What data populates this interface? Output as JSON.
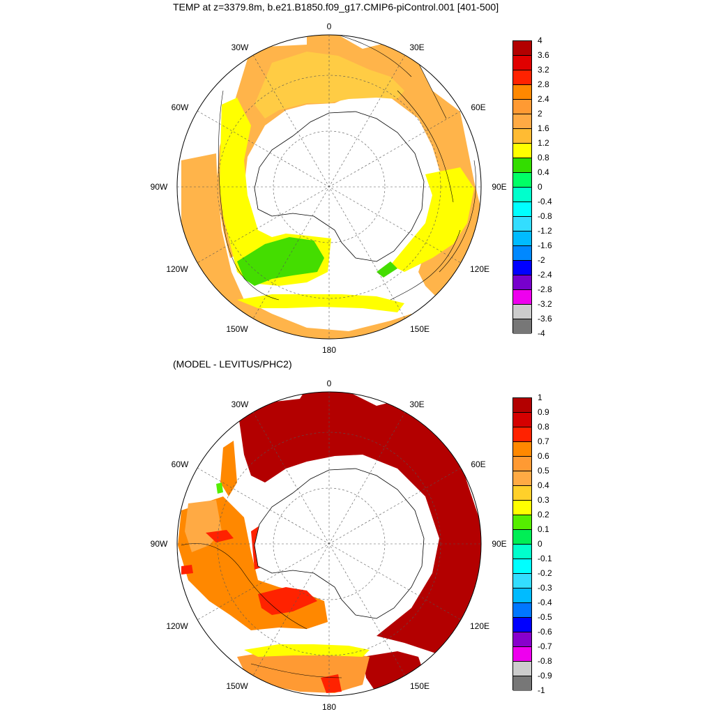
{
  "panels": [
    {
      "title": "TEMP at z=3379.8m, b.e21.B1850.f09_g17.CMIP6-piControl.001 [401-500]",
      "lon_labels": {
        "n": "0",
        "ne30": "30E",
        "ne60": "60E",
        "e": "90E",
        "se120": "120E",
        "se150": "150E",
        "s": "180",
        "sw150": "150W",
        "sw120": "120W",
        "w": "90W",
        "nw60": "60W",
        "nw30": "30W"
      },
      "colorbar": {
        "labels": [
          "4",
          "3.6",
          "3.2",
          "2.8",
          "2.4",
          "2",
          "1.6",
          "1.2",
          "0.8",
          "0.4",
          "0",
          "-0.4",
          "-0.8",
          "-1.2",
          "-1.6",
          "-2",
          "-2.4",
          "-2.8",
          "-3.2",
          "-3.6",
          "-4"
        ],
        "colors": [
          "#b30000",
          "#e00000",
          "#ff2200",
          "#ff8800",
          "#ff9a33",
          "#ffaa44",
          "#ffbb33",
          "#ffff00",
          "#33dd00",
          "#00ff66",
          "#00ffcc",
          "#00ffff",
          "#33ddff",
          "#00bbff",
          "#0088ff",
          "#0000ff",
          "#7700cc",
          "#ee00ee",
          "#cccccc",
          "#777777"
        ]
      }
    },
    {
      "title": "(MODEL - LEVITUS/PHC2)",
      "lon_labels": {
        "n": "0",
        "ne30": "30E",
        "ne60": "60E",
        "e": "90E",
        "se120": "120E",
        "se150": "150E",
        "s": "180",
        "sw150": "150W",
        "sw120": "120W",
        "w": "90W",
        "nw60": "60W",
        "nw30": "30W"
      },
      "colorbar": {
        "labels": [
          "1",
          "0.9",
          "0.8",
          "0.7",
          "0.6",
          "0.5",
          "0.4",
          "0.3",
          "0.2",
          "0.1",
          "0",
          "-0.1",
          "-0.2",
          "-0.3",
          "-0.4",
          "-0.5",
          "-0.6",
          "-0.7",
          "-0.8",
          "-0.9",
          "-1"
        ],
        "colors": [
          "#b30000",
          "#d40000",
          "#ff2200",
          "#ff8800",
          "#ff9a33",
          "#ffaa44",
          "#ffd02a",
          "#ffff00",
          "#55ee00",
          "#00ee55",
          "#00ffcc",
          "#00ffff",
          "#33ddff",
          "#00bbff",
          "#0077ff",
          "#0000ff",
          "#8800cc",
          "#ee00ee",
          "#cccccc",
          "#777777"
        ]
      }
    }
  ]
}
